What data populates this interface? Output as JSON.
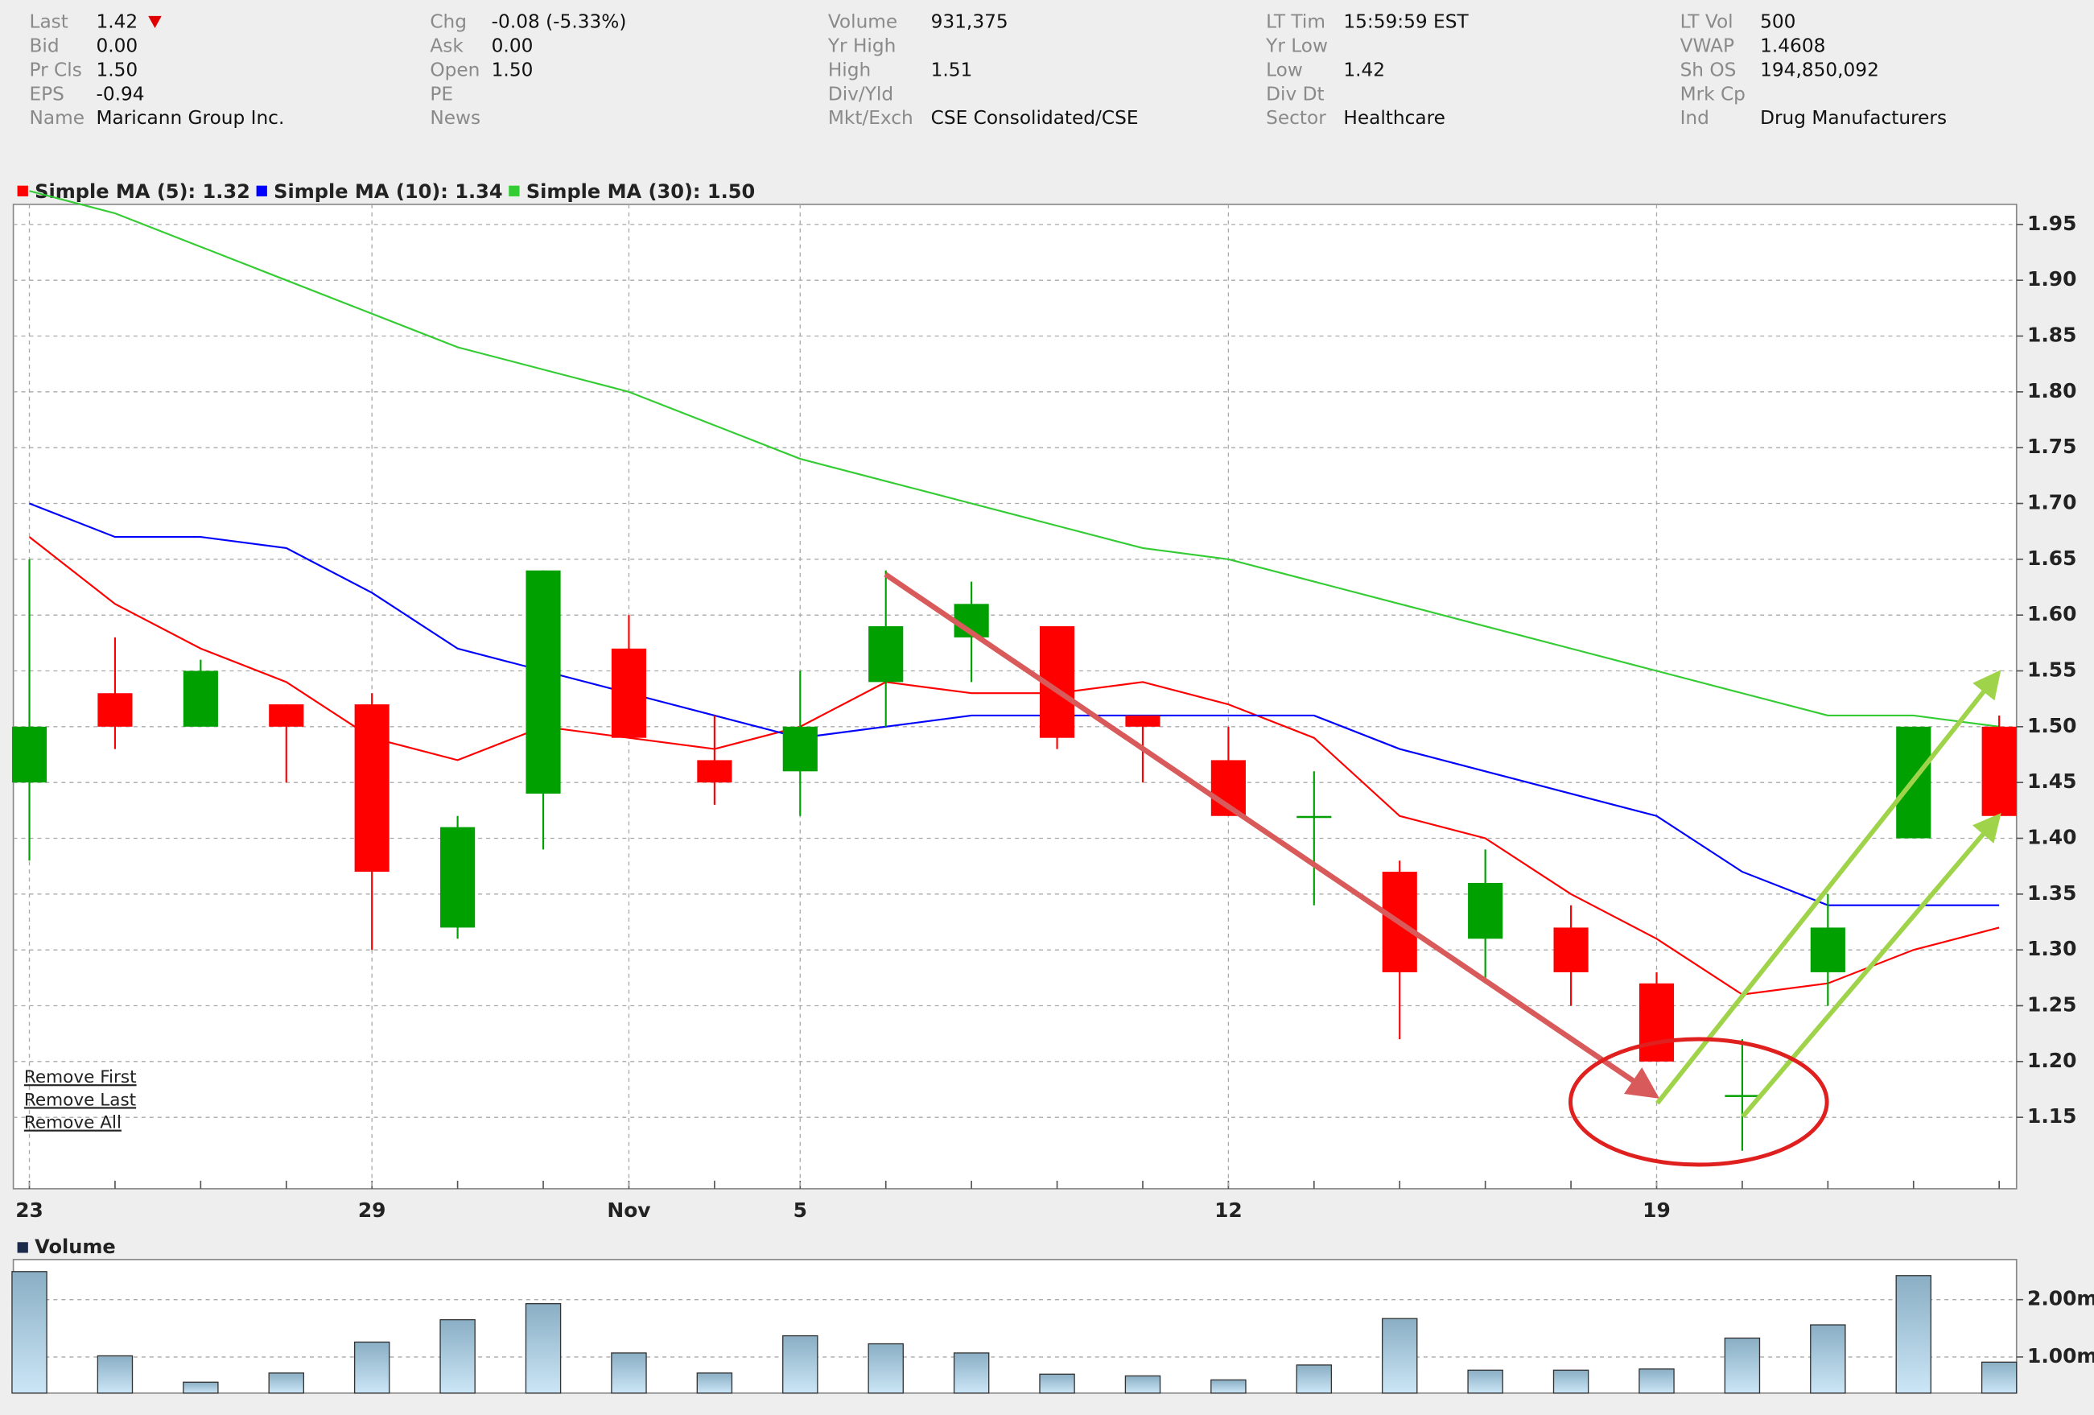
{
  "quote": {
    "columns": [
      [
        {
          "label": "Last",
          "value": "1.42"
        },
        {
          "label": "Bid",
          "value": "0.00"
        },
        {
          "label": "Pr Cls",
          "value": "1.50"
        },
        {
          "label": "EPS",
          "value": "-0.94"
        },
        {
          "label": "Name",
          "value": "Maricann Group Inc."
        }
      ],
      [
        {
          "label": "Chg",
          "value": "-0.08 (-5.33%)",
          "color": "#e00000"
        },
        {
          "label": "Ask",
          "value": "0.00"
        },
        {
          "label": "Open",
          "value": "1.50"
        },
        {
          "label": "PE"
        },
        {
          "label": "News"
        }
      ],
      [
        {
          "label": "Volume",
          "value": "931,375"
        },
        {
          "label": "Yr High"
        },
        {
          "label": "High",
          "value": "1.51"
        },
        {
          "label": "Div/Yld"
        },
        {
          "label": "Mkt/Exch",
          "value": "CSE Consolidated/CSE"
        }
      ],
      [
        {
          "label": "LT Tim",
          "value": "15:59:59 EST"
        },
        {
          "label": "Yr Low"
        },
        {
          "label": "Low",
          "value": "1.42"
        },
        {
          "label": "Div Dt"
        },
        {
          "label": "Sector",
          "value": "Healthcare"
        }
      ],
      [
        {
          "label": "LT Vol",
          "value": "500"
        },
        {
          "label": "VWAP",
          "value": "1.4608"
        },
        {
          "label": "Sh OS",
          "value": "194,850,092"
        },
        {
          "label": "Mrk Cp"
        },
        {
          "label": "Ind",
          "value": "Drug Manufacturers"
        }
      ]
    ]
  },
  "links": [
    "Remove First",
    "Remove Last",
    "Remove All"
  ],
  "chart_data": [
    {
      "type": "candlestick",
      "categories": [
        "23",
        null,
        null,
        null,
        "29",
        null,
        null,
        "Nov",
        null,
        "5",
        null,
        null,
        null,
        null,
        "12",
        null,
        null,
        null,
        null,
        "19",
        null,
        null,
        null,
        null
      ],
      "open": [
        1.45,
        1.53,
        1.5,
        1.52,
        1.52,
        1.32,
        1.44,
        1.57,
        1.47,
        1.46,
        1.54,
        1.58,
        1.59,
        1.51,
        1.47,
        1.42,
        1.37,
        1.31,
        1.32,
        1.27,
        1.17,
        1.28,
        1.4,
        1.5
      ],
      "high": [
        1.65,
        1.58,
        1.56,
        1.52,
        1.53,
        1.42,
        1.64,
        1.6,
        1.51,
        1.55,
        1.64,
        1.63,
        1.59,
        1.51,
        1.5,
        1.46,
        1.38,
        1.39,
        1.34,
        1.28,
        1.22,
        1.35,
        1.5,
        1.51
      ],
      "low": [
        1.38,
        1.48,
        1.5,
        1.45,
        1.3,
        1.31,
        1.39,
        1.49,
        1.43,
        1.42,
        1.5,
        1.54,
        1.48,
        1.45,
        1.42,
        1.34,
        1.22,
        1.27,
        1.25,
        1.2,
        1.12,
        1.25,
        1.4,
        1.42
      ],
      "close": [
        1.5,
        1.5,
        1.55,
        1.5,
        1.37,
        1.41,
        1.64,
        1.49,
        1.45,
        1.5,
        1.59,
        1.61,
        1.49,
        1.5,
        1.42,
        1.42,
        1.28,
        1.36,
        1.28,
        1.2,
        1.17,
        1.32,
        1.5,
        1.42
      ],
      "up_color": "#00a000",
      "down_color": "#ff0000",
      "series": [
        {
          "name": "Simple MA (5): 1.32",
          "color": "#ff0000",
          "values": [
            1.67,
            1.61,
            1.57,
            1.54,
            1.49,
            1.47,
            1.5,
            1.49,
            1.48,
            1.5,
            1.54,
            1.53,
            1.53,
            1.54,
            1.52,
            1.49,
            1.42,
            1.4,
            1.35,
            1.31,
            1.26,
            1.27,
            1.3,
            1.32
          ]
        },
        {
          "name": "Simple MA (10): 1.34",
          "color": "#0000ff",
          "values": [
            1.7,
            1.67,
            1.67,
            1.66,
            1.62,
            1.57,
            1.55,
            1.53,
            1.51,
            1.49,
            1.5,
            1.51,
            1.51,
            1.51,
            1.51,
            1.51,
            1.48,
            1.46,
            1.44,
            1.42,
            1.37,
            1.34,
            1.34,
            1.34
          ]
        },
        {
          "name": "Simple MA (30): 1.50",
          "color": "#33cc33",
          "values": [
            1.98,
            1.96,
            1.93,
            1.9,
            1.87,
            1.84,
            1.82,
            1.8,
            1.77,
            1.74,
            1.72,
            1.7,
            1.68,
            1.66,
            1.65,
            1.63,
            1.61,
            1.59,
            1.57,
            1.55,
            1.53,
            1.51,
            1.51,
            1.5
          ]
        }
      ],
      "ylim": [
        1.086,
        1.968
      ],
      "yticks": [
        1.15,
        {
          "value": 1.2,
          "label": "1.20"
        },
        1.25,
        {
          "value": 1.3,
          "label": "1.30"
        },
        1.35,
        {
          "value": 1.4,
          "label": "1.40"
        },
        1.45,
        {
          "value": 1.5,
          "label": "1.50"
        },
        1.55,
        {
          "value": 1.6,
          "label": "1.60"
        },
        1.65,
        {
          "value": 1.7,
          "label": "1.70"
        },
        1.75,
        {
          "value": 1.8,
          "label": "1.80"
        },
        1.85,
        {
          "value": 1.9,
          "label": "1.90"
        },
        1.95
      ],
      "grid": true
    },
    {
      "type": "bar",
      "series": [
        {
          "name": "Volume",
          "color": "#1b2a4a",
          "values": [
            2.49,
            1.02,
            0.56,
            0.72,
            1.26,
            1.65,
            1.93,
            1.07,
            0.72,
            1.37,
            1.23,
            1.07,
            0.7,
            0.67,
            0.6,
            0.86,
            1.67,
            0.77,
            0.77,
            0.79,
            1.33,
            1.56,
            2.42,
            0.91
          ]
        }
      ],
      "ylim": [
        0.37,
        2.7
      ],
      "yticks": [
        {
          "value": 1,
          "label": "1.00m"
        },
        {
          "value": 2,
          "label": "2.00m"
        }
      ],
      "grid": true
    }
  ]
}
